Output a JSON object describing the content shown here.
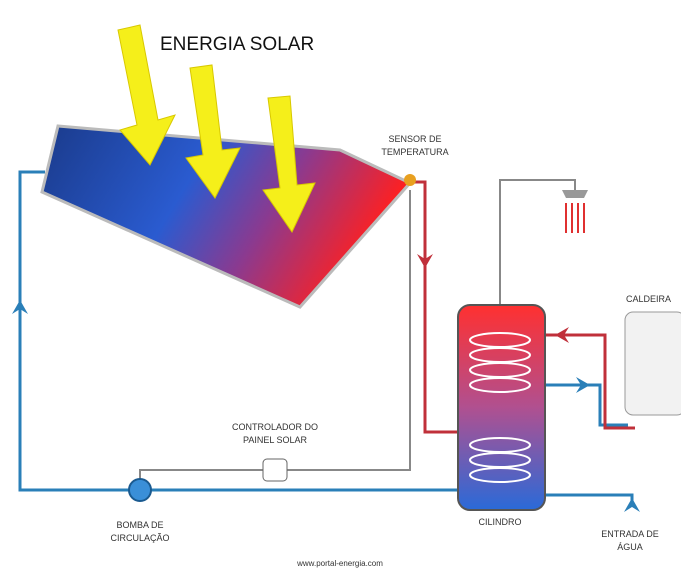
{
  "title": "ENERGIA SOLAR",
  "labels": {
    "sensor": [
      "SENSOR DE",
      "TEMPERATURA"
    ],
    "boiler": [
      "CALDEIRA"
    ],
    "controller": [
      "CONTROLADOR DO",
      "PAINEL SOLAR"
    ],
    "pump": [
      "BOMBA DE",
      "CIRCULAÇÃO"
    ],
    "cylinder": [
      "CILINDRO"
    ],
    "inlet": [
      "ENTRADA DE",
      "ÁGUA"
    ]
  },
  "footer": "www.portal-energia.com"
}
